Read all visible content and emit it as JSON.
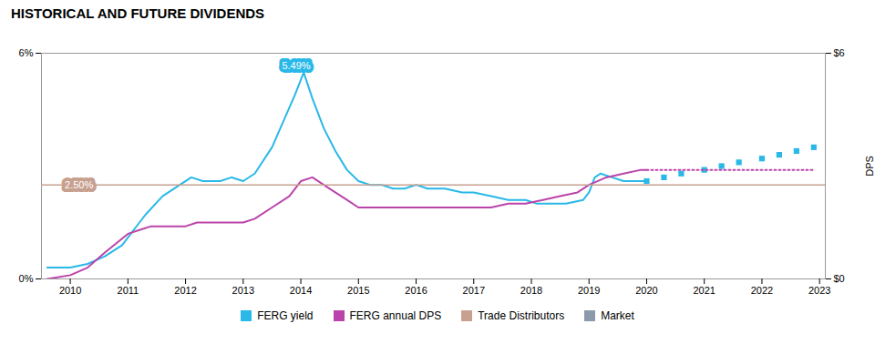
{
  "chart_data": {
    "type": "line",
    "title": "HISTORICAL AND FUTURE DIVIDENDS",
    "y2_label": "DPS",
    "xlim": [
      2009.5,
      2023.1
    ],
    "xticks": [
      2010,
      2011,
      2012,
      2013,
      2014,
      2015,
      2016,
      2017,
      2018,
      2019,
      2020,
      2021,
      2022,
      2023
    ],
    "ylim": [
      0.0,
      0.06
    ],
    "yticks": [
      {
        "value": 0.0,
        "label": "0%"
      },
      {
        "value": 0.06,
        "label": "6%"
      }
    ],
    "y2lim": [
      0,
      6
    ],
    "y2ticks": [
      {
        "value": 0,
        "label": "$0"
      },
      {
        "value": 6,
        "label": "$6"
      }
    ],
    "legend": "bottom",
    "series": [
      {
        "name": "FERG yield",
        "color": "#29b8e8",
        "type": "line",
        "line_style": "solid",
        "x": [
          2009.6,
          2010.0,
          2010.3,
          2010.6,
          2010.9,
          2011.1,
          2011.3,
          2011.6,
          2011.9,
          2012.1,
          2012.3,
          2012.6,
          2012.8,
          2013.0,
          2013.2,
          2013.5,
          2013.7,
          2013.9,
          2014.05,
          2014.2,
          2014.4,
          2014.6,
          2014.8,
          2015.0,
          2015.2,
          2015.4,
          2015.6,
          2015.8,
          2016.0,
          2016.2,
          2016.5,
          2016.8,
          2017.0,
          2017.3,
          2017.6,
          2017.9,
          2018.1,
          2018.3,
          2018.6,
          2018.9,
          2019.0,
          2019.1,
          2019.2,
          2019.4,
          2019.6,
          2019.8,
          2019.9,
          2020.0
        ],
        "values": [
          0.003,
          0.003,
          0.004,
          0.006,
          0.009,
          0.013,
          0.017,
          0.022,
          0.025,
          0.027,
          0.026,
          0.026,
          0.027,
          0.026,
          0.028,
          0.035,
          0.042,
          0.049,
          0.0549,
          0.048,
          0.04,
          0.034,
          0.029,
          0.026,
          0.025,
          0.025,
          0.024,
          0.024,
          0.025,
          0.024,
          0.024,
          0.023,
          0.023,
          0.022,
          0.021,
          0.021,
          0.02,
          0.02,
          0.02,
          0.021,
          0.023,
          0.027,
          0.028,
          0.027,
          0.026,
          0.026,
          0.026,
          0.026
        ]
      },
      {
        "name": "FERG yield",
        "color": "#29b8e8",
        "type": "scatter",
        "marker": "square",
        "x": [
          2020.0,
          2020.3,
          2020.6,
          2021.0,
          2021.3,
          2021.6,
          2022.0,
          2022.3,
          2022.6,
          2022.9
        ],
        "values": [
          0.026,
          0.027,
          0.028,
          0.029,
          0.03,
          0.031,
          0.032,
          0.033,
          0.034,
          0.035
        ]
      },
      {
        "name": "FERG annual DPS",
        "color": "#bb44aa",
        "type": "line",
        "line_style": "solid",
        "x": [
          2009.6,
          2010.0,
          2010.3,
          2010.6,
          2011.0,
          2011.2,
          2011.4,
          2011.6,
          2011.8,
          2012.0,
          2012.2,
          2012.4,
          2012.6,
          2012.8,
          2013.0,
          2013.2,
          2013.5,
          2013.8,
          2014.0,
          2014.2,
          2014.5,
          2014.8,
          2015.0,
          2015.3,
          2015.6,
          2015.9,
          2016.2,
          2016.5,
          2016.8,
          2017.0,
          2017.3,
          2017.6,
          2017.9,
          2018.2,
          2018.5,
          2018.8,
          2019.0,
          2019.3,
          2019.6,
          2019.9,
          2020.0
        ],
        "values": [
          0.0,
          0.001,
          0.003,
          0.007,
          0.012,
          0.013,
          0.014,
          0.014,
          0.014,
          0.014,
          0.015,
          0.015,
          0.015,
          0.015,
          0.015,
          0.016,
          0.019,
          0.022,
          0.026,
          0.027,
          0.024,
          0.021,
          0.019,
          0.019,
          0.019,
          0.019,
          0.019,
          0.019,
          0.019,
          0.019,
          0.019,
          0.02,
          0.02,
          0.021,
          0.022,
          0.023,
          0.025,
          0.027,
          0.028,
          0.029,
          0.029
        ]
      },
      {
        "name": "FERG annual DPS",
        "color": "#bb44aa",
        "type": "line",
        "line_style": "dotted",
        "x": [
          2020.0,
          2020.3,
          2020.6,
          2021.0,
          2021.3,
          2021.6,
          2022.0,
          2022.3,
          2022.6,
          2022.9
        ],
        "values": [
          0.029,
          0.029,
          0.029,
          0.029,
          0.029,
          0.029,
          0.029,
          0.029,
          0.029,
          0.029
        ]
      },
      {
        "name": "Trade Distributors",
        "color": "#c8a090",
        "type": "hline",
        "values": [
          0.025
        ]
      },
      {
        "name": "Market",
        "color": "#8a9aaa",
        "type": "line",
        "x": [],
        "values": []
      }
    ],
    "annotations": [
      {
        "text": "5.49%",
        "x": 2013.92,
        "y": 0.0549,
        "color": "#29b8e8",
        "anchor": "bottom"
      },
      {
        "text": "2.50%",
        "x": 2010.15,
        "y": 0.025,
        "color": "#c8a090",
        "anchor": "middle"
      }
    ]
  }
}
